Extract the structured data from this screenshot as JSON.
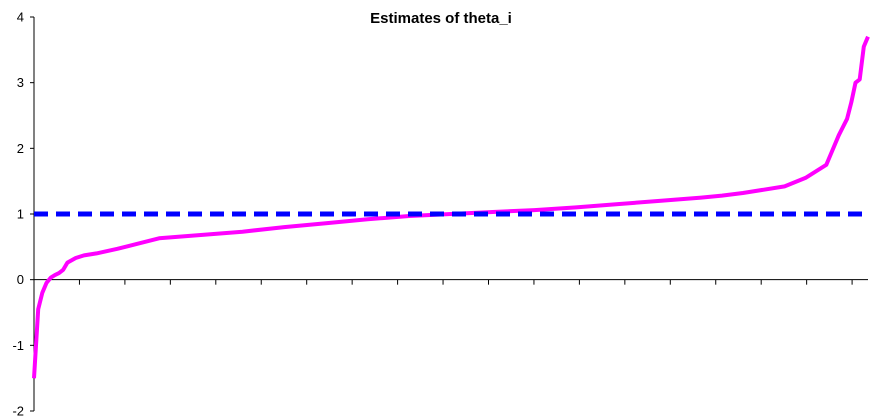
{
  "chart_data": {
    "type": "line",
    "title": "Estimates of theta_i",
    "xlabel": "",
    "ylabel": "",
    "ylim": [
      -2,
      4
    ],
    "y_ticks": [
      "-2",
      "-1",
      "0",
      "1",
      "2",
      "3",
      "4"
    ],
    "x_range": [
      0,
      200
    ],
    "x_tick_count": 18,
    "x_tick_labels": [],
    "grid": false,
    "legend": "none",
    "series": [
      {
        "style": "solid",
        "color": "#ff00ff",
        "x": [
          0,
          1,
          2,
          3,
          4,
          5,
          6,
          7,
          8,
          10,
          12,
          15,
          20,
          25,
          30,
          40,
          50,
          60,
          70,
          80,
          90,
          100,
          110,
          120,
          130,
          140,
          150,
          160,
          165,
          170,
          180,
          185,
          190,
          191,
          193,
          195,
          196,
          197,
          198,
          199,
          200
        ],
        "y": [
          -1.5,
          -0.45,
          -0.2,
          -0.05,
          0.03,
          0.07,
          0.1,
          0.15,
          0.26,
          0.33,
          0.37,
          0.4,
          0.47,
          0.55,
          0.63,
          0.68,
          0.73,
          0.8,
          0.86,
          0.92,
          0.97,
          1.0,
          1.03,
          1.06,
          1.1,
          1.15,
          1.2,
          1.25,
          1.28,
          1.32,
          1.42,
          1.55,
          1.75,
          1.9,
          2.2,
          2.45,
          2.7,
          3.0,
          3.05,
          3.55,
          3.7
        ]
      },
      {
        "style": "dashed",
        "color": "#0000ff",
        "x": [
          0,
          200
        ],
        "y": [
          1,
          1
        ]
      }
    ]
  }
}
